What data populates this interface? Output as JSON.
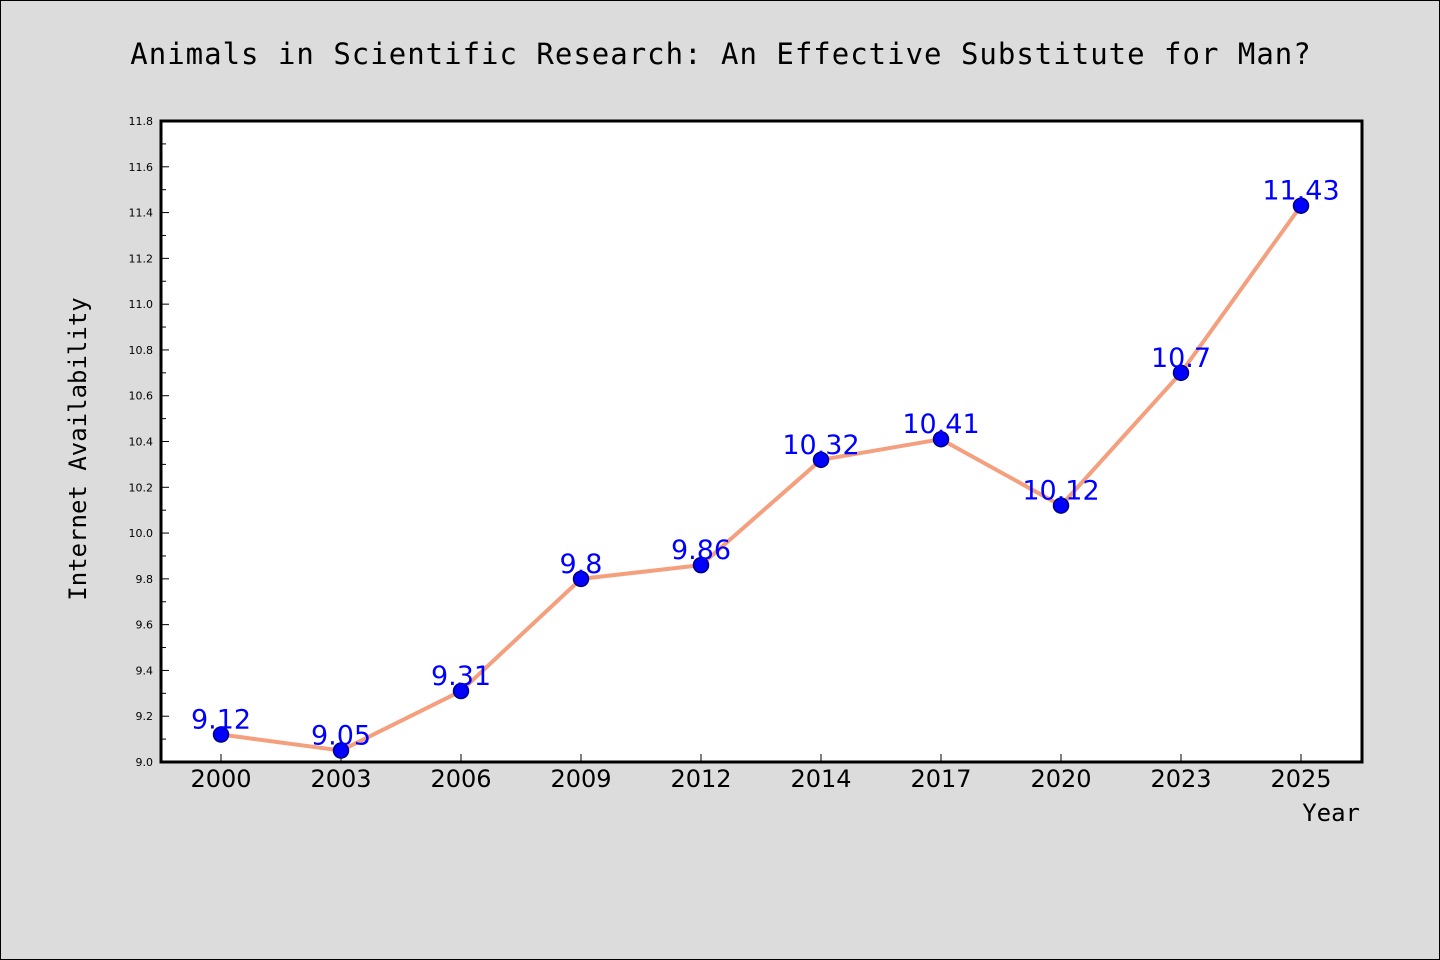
{
  "chart_data": {
    "type": "line",
    "title": "Animals in Scientific Research: An Effective Substitute for Man?",
    "xlabel": "Year",
    "ylabel": "Internet Availability",
    "categories": [
      "2000",
      "2003",
      "2006",
      "2009",
      "2012",
      "2014",
      "2017",
      "2020",
      "2023",
      "2025"
    ],
    "series": [
      {
        "values": [
          9.12,
          9.05,
          9.31,
          9.8,
          9.86,
          10.32,
          10.41,
          10.12,
          10.7,
          11.43
        ],
        "data_labels": [
          "9.12",
          "9.05",
          "9.31",
          "9.8",
          "9.86",
          "10.32",
          "10.41",
          "10.12",
          "10.7",
          "11.43"
        ]
      }
    ],
    "ylim": [
      9.0,
      11.8
    ],
    "yticks": [
      "9.0",
      "9.2",
      "9.4",
      "9.6",
      "9.8",
      "10.0",
      "10.2",
      "10.4",
      "10.6",
      "10.8",
      "11.0",
      "11.2",
      "11.4",
      "11.6",
      "11.8"
    ],
    "grid": false,
    "legend": "none",
    "colors": {
      "background": "#dcdcdc",
      "plot_background": "#ffffff",
      "line": "#f4a07e",
      "marker": "#0000ff",
      "marker_edge": "#000080",
      "data_label": "#0000ff"
    }
  }
}
